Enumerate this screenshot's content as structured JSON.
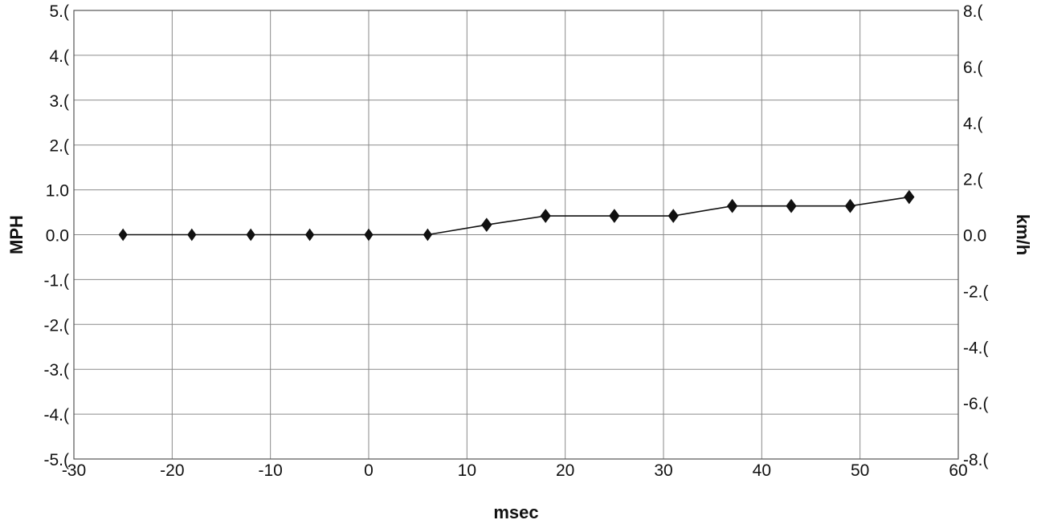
{
  "chart_data": {
    "type": "line",
    "title": "",
    "xlabel": "msec",
    "ylabel": "MPH",
    "y2label": "km/h",
    "xlim": [
      -30,
      60
    ],
    "ylim": [
      -5.0,
      5.0
    ],
    "y2lim": [
      -8.0,
      8.0
    ],
    "x_ticks": [
      "-30",
      "-20",
      "-10",
      "0",
      "10",
      "20",
      "30",
      "40",
      "50",
      "60"
    ],
    "y_ticks": [
      "5.(",
      "4.(",
      "3.(",
      "2.(",
      "1.0",
      "0.0",
      "-1.(",
      "-2.(",
      "-3.(",
      "-4.(",
      "-5.("
    ],
    "y2_ticks": [
      "8.(",
      "6.(",
      "4.(",
      "2.(",
      "0.0",
      "-2.(",
      "-4.(",
      "-6.(",
      "-8.("
    ],
    "grid": true,
    "legend": "none",
    "series": [
      {
        "x": [
          -25,
          -18,
          -12,
          -6,
          0,
          6,
          12,
          18,
          25,
          31,
          37,
          43,
          49,
          55
        ],
        "y": [
          0.0,
          0.0,
          0.0,
          0.0,
          0.0,
          0.0,
          0.22,
          0.42,
          0.42,
          0.42,
          0.64,
          0.64,
          0.64,
          0.84
        ],
        "hollow_markers": [
          true,
          true,
          true,
          true,
          true,
          true,
          false,
          false,
          false,
          false,
          false,
          false,
          false,
          false
        ]
      }
    ],
    "colors": {
      "line": "#111111",
      "grid": "#8a8a8a",
      "frame": "#555555"
    }
  }
}
